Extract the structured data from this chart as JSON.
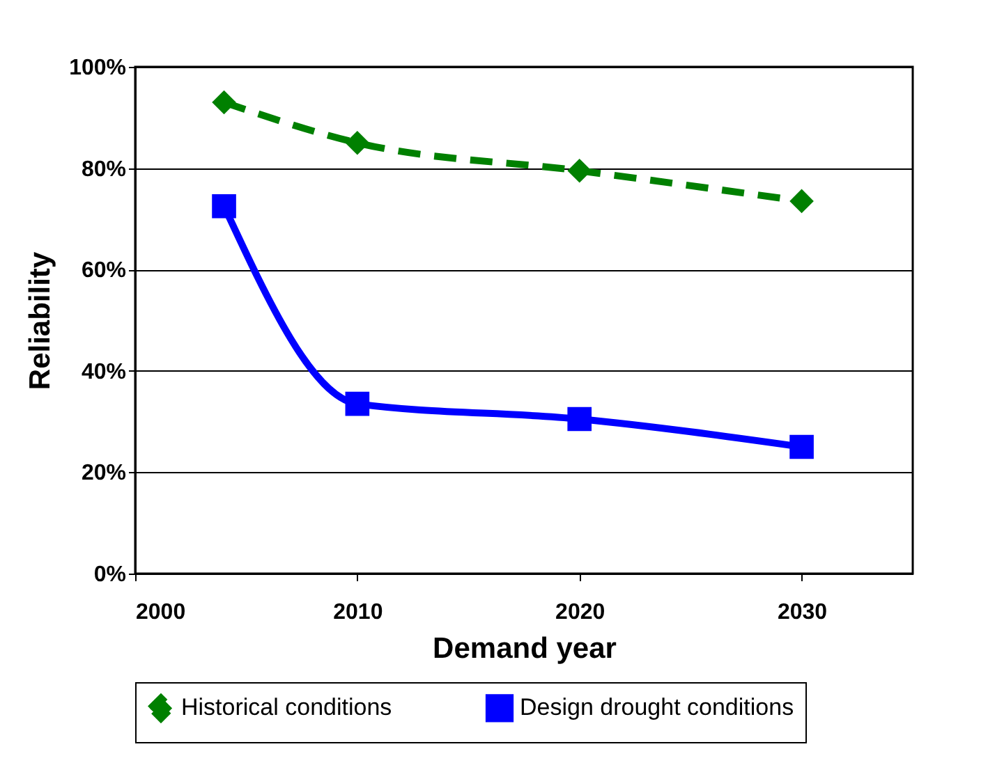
{
  "chart_data": {
    "type": "line",
    "xlabel": "Demand year",
    "ylabel": "Reliability",
    "x": [
      2004,
      2010,
      2020,
      2030
    ],
    "series": [
      {
        "name": "Historical conditions",
        "color": "#008000",
        "values": [
          93,
          85,
          79.5,
          73.5
        ],
        "marker": "diamond",
        "line_style": "dashed"
      },
      {
        "name": "Design drought conditions",
        "color": "#0000ff",
        "values": [
          72.5,
          33.5,
          30.5,
          25
        ],
        "marker": "square",
        "line_style": "solid"
      }
    ],
    "xlim": [
      2000,
      2035
    ],
    "xticks": [
      2000,
      2010,
      2020,
      2030
    ],
    "ylim": [
      0,
      100
    ],
    "yticks": [
      {
        "value": 0,
        "label": "0%"
      },
      {
        "value": 20,
        "label": "20%"
      },
      {
        "value": 40,
        "label": "40%"
      },
      {
        "value": 60,
        "label": "60%"
      },
      {
        "value": 80,
        "label": "80%"
      },
      {
        "value": 100,
        "label": "100%"
      }
    ],
    "grid": "y",
    "legend": "bottom"
  }
}
